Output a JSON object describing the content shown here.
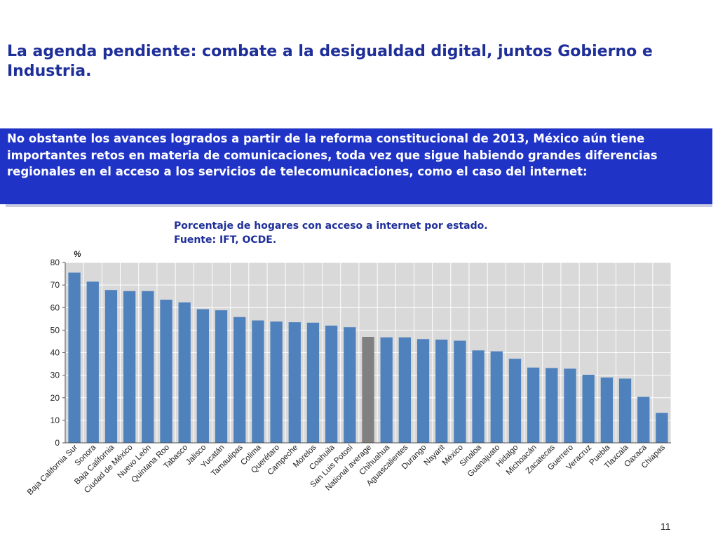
{
  "slide": {
    "title": "La agenda pendiente: combate a la desigualdad digital, juntos Gobierno e Industria.",
    "intro": "No obstante los avances logrados a partir de la reforma constitucional de 2013, México aún tiene importantes retos en materia de comunicaciones, toda vez que sigue habiendo grandes diferencias  regionales en el acceso a los servicios de telecomunicaciones, como el caso del internet:",
    "caption_line1": "Porcentaje de hogares con acceso a internet por estado.",
    "caption_line2": "Fuente: IFT, OCDE.",
    "page_number": "11"
  },
  "colors": {
    "title": "#1f2f9a",
    "box_bg": "#1f33c6",
    "bar": "#4f81bd",
    "bar_highlight": "#808080",
    "plot_bg": "#d9d9d9",
    "grid": "#ffffff"
  },
  "chart_data": {
    "type": "bar",
    "ylabel": "%",
    "ylim": [
      0,
      80
    ],
    "yticks": [
      0,
      10,
      20,
      30,
      40,
      50,
      60,
      70,
      80
    ],
    "grid": true,
    "highlight_category": "National average",
    "categories": [
      "Baja California Sur",
      "Sonora",
      "Baja California",
      "Ciudad de México",
      "Nuevo León",
      "Quintana Roo",
      "Tabasco",
      "Jalisco",
      "Yucatán",
      "Tamaulipas",
      "Colima",
      "Querétaro",
      "Campeche",
      "Morelos",
      "Coahuila",
      "San Luis Potosí",
      "National average",
      "Chihuahua",
      "Aguascalientes",
      "Durango",
      "Nayarit",
      "México",
      "Sinaloa",
      "Guanajuato",
      "Hidalgo",
      "Michoacán",
      "Zacatecas",
      "Guerrero",
      "Veracruz",
      "Puebla",
      "Tlaxcala",
      "Oaxaca",
      "Chiapas"
    ],
    "values": [
      75.5,
      71.5,
      67.8,
      67.3,
      67.3,
      63.5,
      62.3,
      59.3,
      58.8,
      55.8,
      54.3,
      53.8,
      53.5,
      53.3,
      52,
      51.3,
      47,
      46.8,
      46.8,
      46,
      45.8,
      45.3,
      41,
      40.6,
      37.3,
      33.4,
      33.2,
      32.9,
      30.2,
      29,
      28.5,
      20.4,
      13.3
    ]
  }
}
